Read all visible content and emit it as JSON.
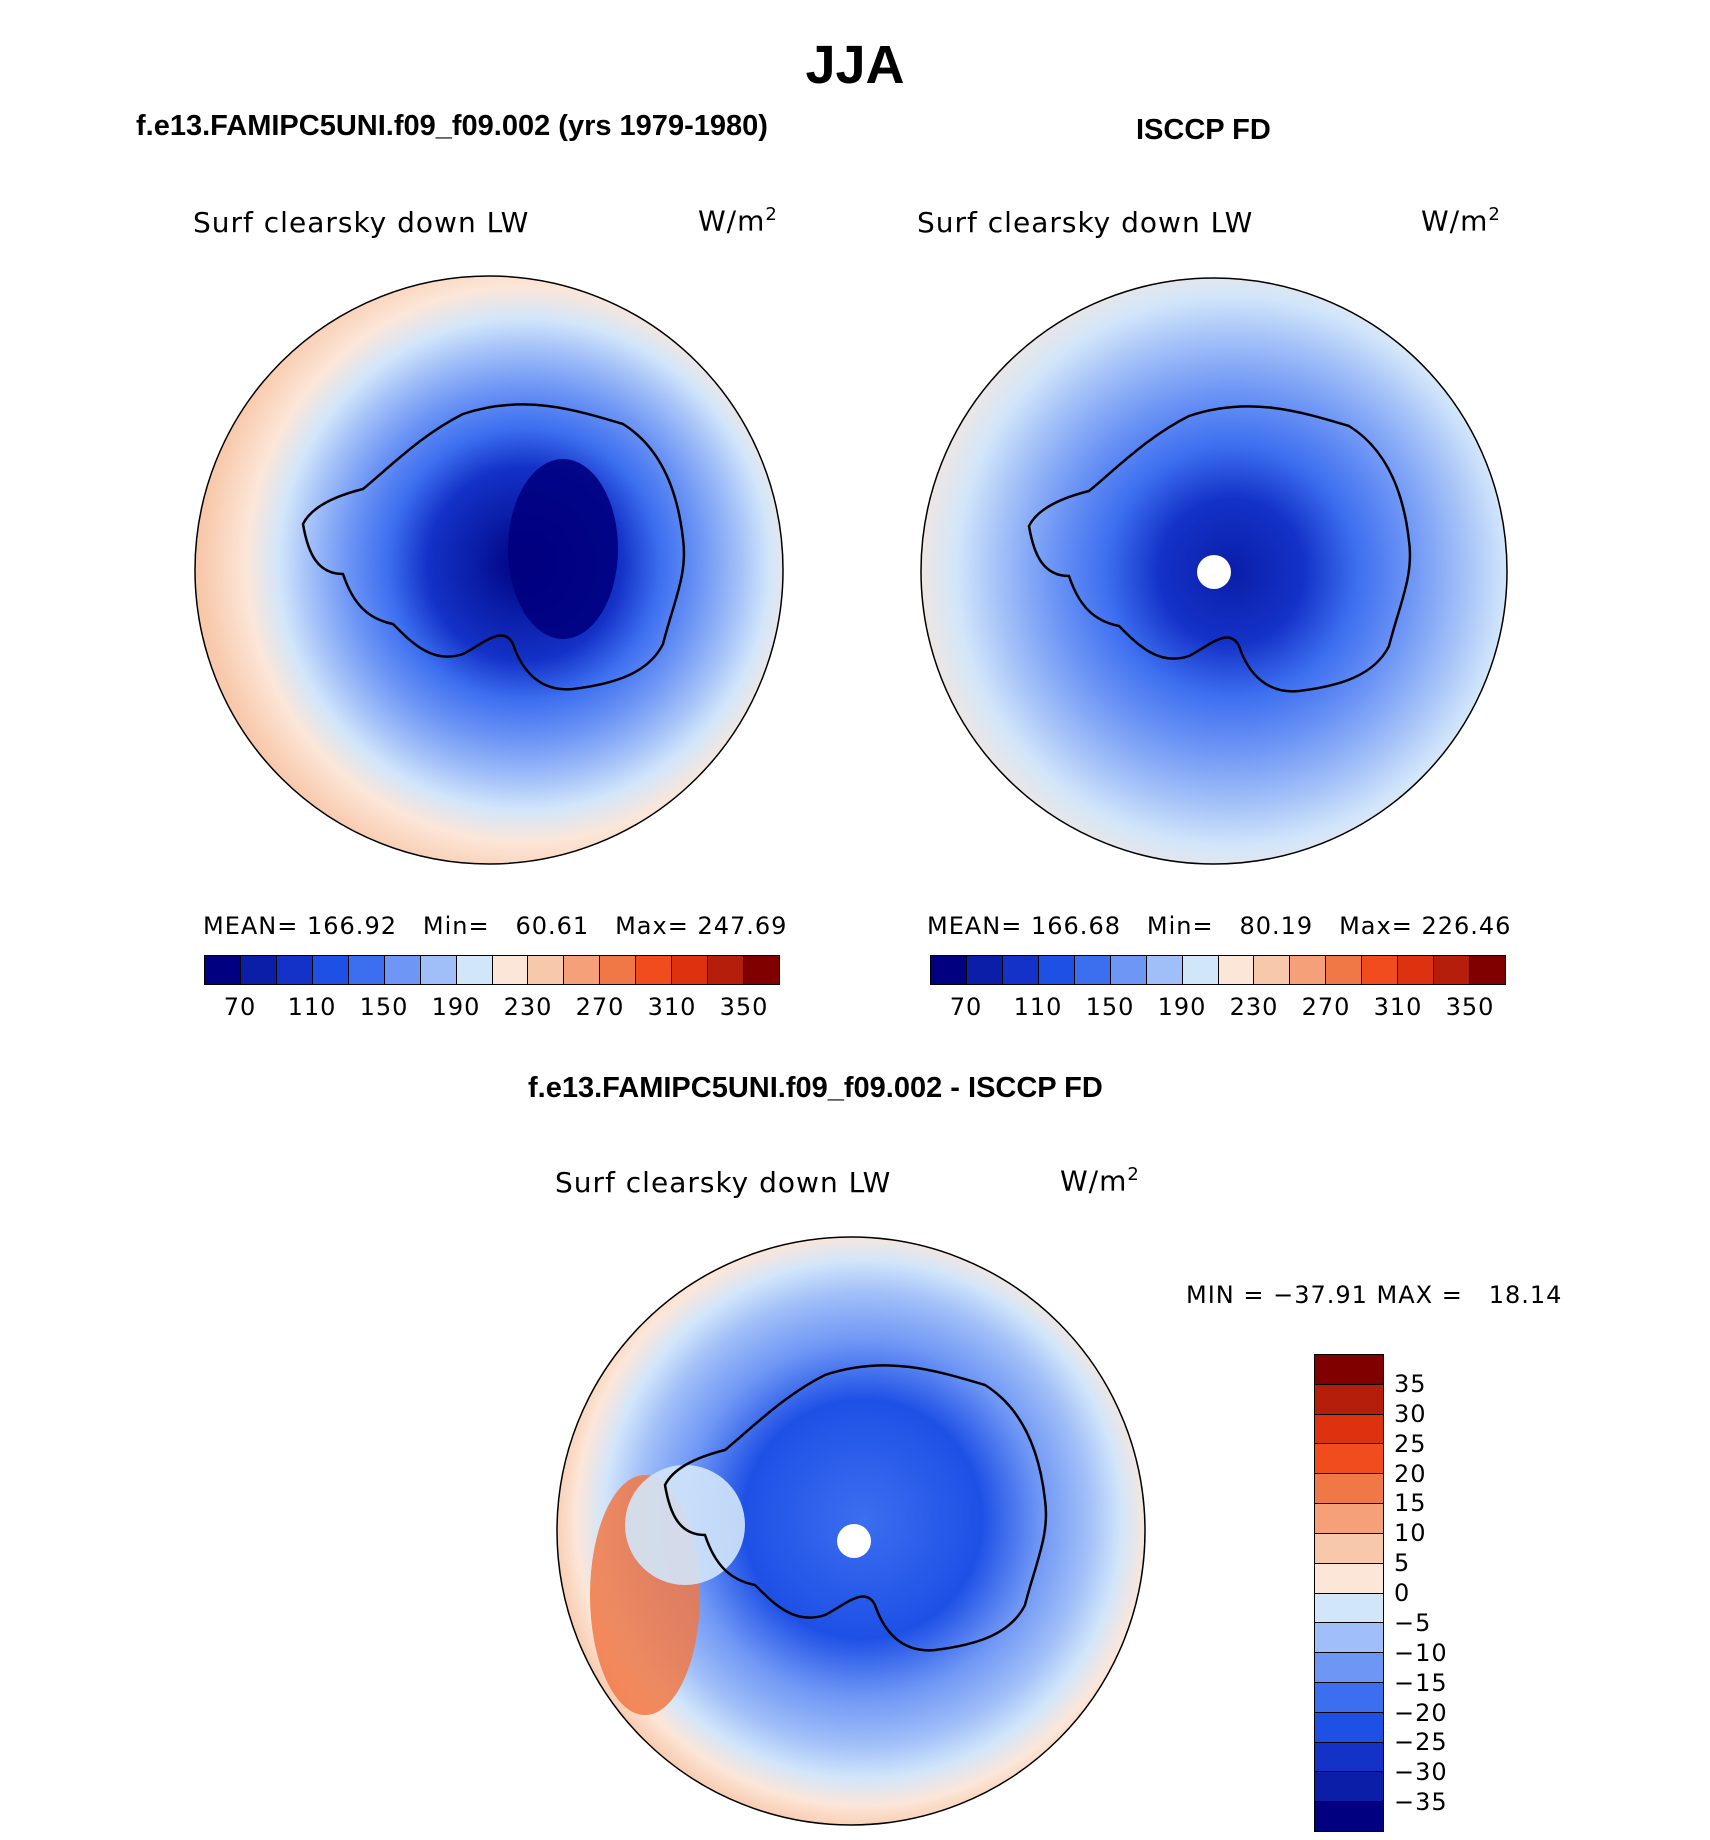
{
  "title": "JJA",
  "panel_left": {
    "title": "f.e13.FAMIPC5UNI.f09_f09.002 (yrs 1979-1980)",
    "field": "Surf clearsky down LW",
    "units_base": "W/m",
    "units_exp": "2",
    "mean_label": "MEAN=",
    "mean": "166.92",
    "min_label": "Min=",
    "min": "60.61",
    "max_label": "Max=",
    "max": "247.69"
  },
  "panel_right": {
    "title": "ISCCP FD",
    "field": "Surf clearsky down LW",
    "units_base": "W/m",
    "units_exp": "2",
    "mean_label": "MEAN=",
    "mean": "166.68",
    "min_label": "Min=",
    "min": "80.19",
    "max_label": "Max=",
    "max": "226.46"
  },
  "panel_diff": {
    "title": "f.e13.FAMIPC5UNI.f09_f09.002 - ISCCP FD",
    "field": "Surf clearsky down LW",
    "units_base": "W/m",
    "units_exp": "2",
    "minmax": "MIN = −37.91 MAX =   18.14"
  },
  "colorbar_abs": {
    "colors": [
      "#000080",
      "#0a1ea8",
      "#1432c8",
      "#1e50e6",
      "#3c6ef0",
      "#6e96f5",
      "#a0bef8",
      "#d2e6fa",
      "#fce6d8",
      "#f8c8aa",
      "#f5a078",
      "#f07846",
      "#f04c1e",
      "#dc3210",
      "#b41e0a",
      "#800000"
    ],
    "tick_labels": [
      "70",
      "110",
      "150",
      "190",
      "230",
      "270",
      "310",
      "350"
    ]
  },
  "colorbar_diff": {
    "colors": [
      "#000080",
      "#0a1ea8",
      "#1432c8",
      "#1e50e6",
      "#3c6ef0",
      "#6e96f5",
      "#a0bef8",
      "#d2e6fa",
      "#fce6d8",
      "#f8c8aa",
      "#f5a078",
      "#f07846",
      "#f04c1e",
      "#dc3210",
      "#b41e0a",
      "#800000"
    ],
    "tick_labels": [
      "35",
      "30",
      "25",
      "20",
      "15",
      "10",
      "5",
      "0",
      "−5",
      "−10",
      "−15",
      "−20",
      "−25",
      "−30",
      "−35"
    ]
  }
}
